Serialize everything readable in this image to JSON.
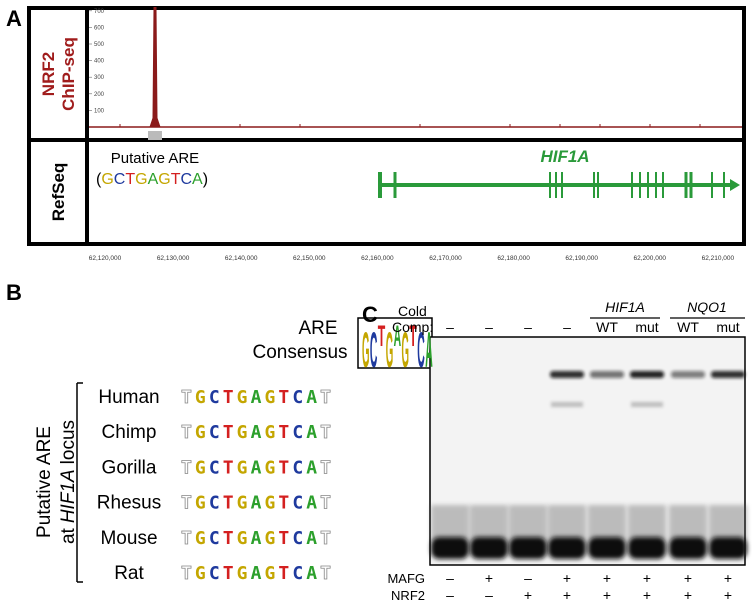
{
  "panel_a": {
    "label": "A",
    "chip_label": [
      "NRF2",
      "ChIP-seq"
    ],
    "chip_yticks": [
      100,
      200,
      300,
      400,
      500,
      600,
      700
    ],
    "peak_value": 720,
    "refseq_label": "RefSeq",
    "are_label": "Putative ARE",
    "are_sequence": "(GCTGAGTCA)",
    "gene": "HIF1A",
    "genome_ticks": [
      "62,120,000",
      "62,130,000",
      "62,140,000",
      "62,150,000",
      "62,160,000",
      "62,170,000",
      "62,180,000",
      "62,190,000",
      "62,200,000",
      "62,210,000"
    ]
  },
  "panel_b": {
    "label": "B",
    "consensus_label": [
      "ARE",
      "Consensus"
    ],
    "logo": "GCTGAGTCA",
    "locus_label": {
      "line1": "Putative ARE",
      "prefix": "at",
      "gene": "HIF1A",
      "suffix": "locus"
    },
    "species": [
      {
        "name": "Human",
        "sequence": "TGCTGAGTCAT"
      },
      {
        "name": "Chimp",
        "sequence": "TGCTGAGTCAT"
      },
      {
        "name": "Gorilla",
        "sequence": "TGCTGAGTCAT"
      },
      {
        "name": "Rhesus",
        "sequence": "TGCTGAGTCAT"
      },
      {
        "name": "Mouse",
        "sequence": "TGCTGAGTCAT"
      },
      {
        "name": "Rat",
        "sequence": "TGCTGAGTCAT"
      }
    ]
  },
  "panel_c": {
    "label": "C",
    "cold_label": "Cold",
    "comp_label": "Comp:",
    "groups": [
      "HIF1A",
      "NQO1"
    ],
    "comp_row": [
      "–",
      "–",
      "–",
      "–",
      "WT",
      "mut",
      "WT",
      "mut"
    ],
    "rows": [
      {
        "name": "MAFG",
        "signs": [
          "–",
          "+",
          "–",
          "+",
          "+",
          "+",
          "+",
          "+"
        ]
      },
      {
        "name": "NRF2",
        "signs": [
          "–",
          "–",
          "+",
          "+",
          "+",
          "+",
          "+",
          "+"
        ]
      }
    ]
  }
}
